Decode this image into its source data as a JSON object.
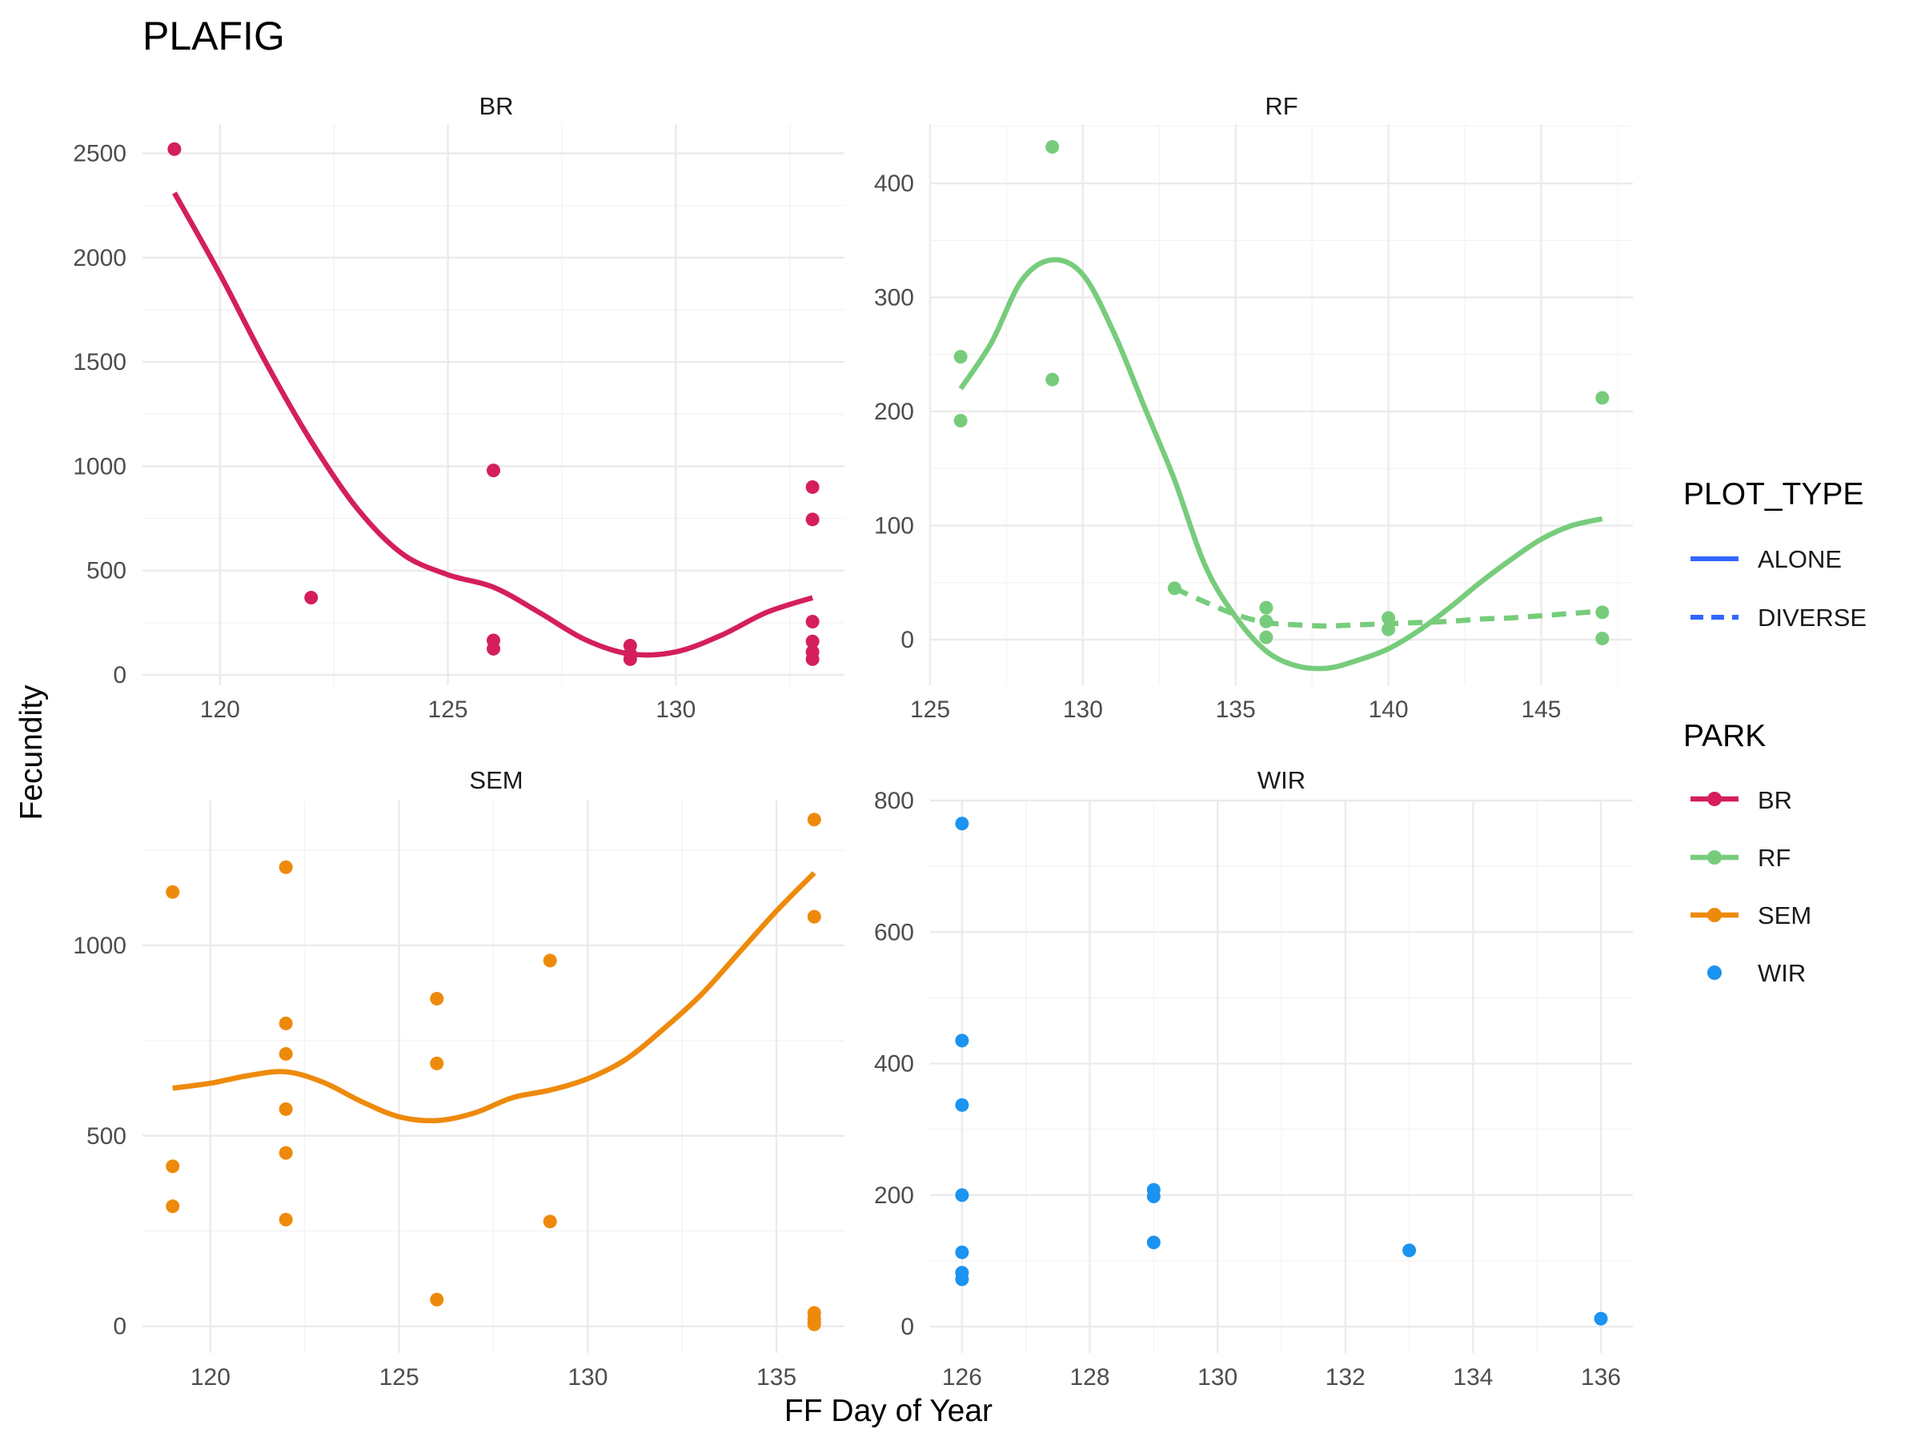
{
  "title": "PLAFIG",
  "xlabel": "FF Day of Year",
  "ylabel": "Fecundity",
  "legend": {
    "plot_type_title": "PLOT_TYPE",
    "plot_type_items": [
      {
        "label": "ALONE",
        "linetype": "solid"
      },
      {
        "label": "DIVERSE",
        "linetype": "dashed"
      }
    ],
    "park_title": "PARK",
    "park_items": [
      {
        "label": "BR",
        "color": "#d41f5b",
        "line": true
      },
      {
        "label": "RF",
        "color": "#77cc7c",
        "line": true
      },
      {
        "label": "SEM",
        "color": "#ee8a0b",
        "line": true
      },
      {
        "label": "WIR",
        "color": "#1b93f0",
        "line": false
      }
    ],
    "linetype_key_color": "#3366ff"
  },
  "chart_data": [
    {
      "type": "scatter",
      "facet": "BR",
      "color": "#d41f5b",
      "xlim": [
        118.3,
        133.7
      ],
      "ylim": [
        -50,
        2640
      ],
      "x_ticks": [
        120,
        125,
        130
      ],
      "y_ticks": [
        0,
        500,
        1000,
        1500,
        2000,
        2500
      ],
      "x_tick_labels": [
        "120",
        "125",
        "130"
      ],
      "y_tick_labels": [
        "0",
        "500",
        "1000",
        "1500",
        "2000",
        "2500"
      ],
      "points": [
        [
          119,
          2520
        ],
        [
          122,
          370
        ],
        [
          126,
          980
        ],
        [
          126,
          165
        ],
        [
          126,
          125
        ],
        [
          129,
          140
        ],
        [
          129,
          100
        ],
        [
          129,
          75
        ],
        [
          133,
          900
        ],
        [
          133,
          745
        ],
        [
          133,
          255
        ],
        [
          133,
          160
        ],
        [
          133,
          110
        ],
        [
          133,
          75
        ]
      ],
      "lines": [
        {
          "plot_type": "ALONE",
          "points": [
            [
              119,
              2310
            ],
            [
              120,
              1920
            ],
            [
              121,
              1500
            ],
            [
              122,
              1120
            ],
            [
              123,
              800
            ],
            [
              124,
              580
            ],
            [
              125,
              480
            ],
            [
              126,
              420
            ],
            [
              127,
              300
            ],
            [
              128,
              170
            ],
            [
              129,
              100
            ],
            [
              130,
              110
            ],
            [
              131,
              190
            ],
            [
              132,
              300
            ],
            [
              133,
              370
            ]
          ]
        }
      ]
    },
    {
      "type": "scatter",
      "facet": "RF",
      "color": "#77cc7c",
      "xlim": [
        125,
        148
      ],
      "ylim": [
        -40,
        452
      ],
      "x_ticks": [
        125,
        130,
        135,
        140,
        145
      ],
      "y_ticks": [
        0,
        100,
        200,
        300,
        400
      ],
      "x_tick_labels": [
        "125",
        "130",
        "135",
        "140",
        "145"
      ],
      "y_tick_labels": [
        "0",
        "100",
        "200",
        "300",
        "400"
      ],
      "points": [
        [
          126,
          248
        ],
        [
          126,
          192
        ],
        [
          129,
          432
        ],
        [
          129,
          228
        ],
        [
          133,
          45
        ],
        [
          136,
          28
        ],
        [
          136,
          16
        ],
        [
          136,
          2
        ],
        [
          140,
          19
        ],
        [
          140,
          9
        ],
        [
          147,
          212
        ],
        [
          147,
          24
        ],
        [
          147,
          1
        ]
      ],
      "lines": [
        {
          "plot_type": "ALONE",
          "points": [
            [
              126,
              220
            ],
            [
              127,
              260
            ],
            [
              128,
              315
            ],
            [
              129,
              333
            ],
            [
              130,
              320
            ],
            [
              131,
              270
            ],
            [
              132,
              205
            ],
            [
              133,
              140
            ],
            [
              134,
              65
            ],
            [
              135,
              20
            ],
            [
              136,
              -10
            ],
            [
              137,
              -23
            ],
            [
              138,
              -25
            ],
            [
              139,
              -18
            ],
            [
              140,
              -8
            ],
            [
              141,
              8
            ],
            [
              142,
              28
            ],
            [
              143,
              50
            ],
            [
              144,
              70
            ],
            [
              145,
              88
            ],
            [
              146,
              100
            ],
            [
              147,
              106
            ]
          ]
        },
        {
          "plot_type": "DIVERSE",
          "points": [
            [
              133,
              45
            ],
            [
              134,
              33
            ],
            [
              135,
              22
            ],
            [
              136,
              15
            ],
            [
              137,
              13
            ],
            [
              138,
              12
            ],
            [
              139,
              13
            ],
            [
              140,
              14
            ],
            [
              141,
              15
            ],
            [
              142,
              16
            ],
            [
              143,
              18
            ],
            [
              144,
              19
            ],
            [
              145,
              21
            ],
            [
              146,
              23
            ],
            [
              147,
              25
            ]
          ]
        }
      ]
    },
    {
      "type": "scatter",
      "facet": "SEM",
      "color": "#ee8a0b",
      "xlim": [
        118.2,
        136.8
      ],
      "ylim": [
        -70,
        1380
      ],
      "x_ticks": [
        120,
        125,
        130,
        135
      ],
      "y_ticks": [
        0,
        500,
        1000
      ],
      "x_tick_labels": [
        "120",
        "125",
        "130",
        "135"
      ],
      "y_tick_labels": [
        "0",
        "500",
        "1000"
      ],
      "points": [
        [
          119,
          1140
        ],
        [
          119,
          420
        ],
        [
          119,
          315
        ],
        [
          122,
          1205
        ],
        [
          122,
          795
        ],
        [
          122,
          715
        ],
        [
          122,
          570
        ],
        [
          122,
          455
        ],
        [
          122,
          280
        ],
        [
          126,
          860
        ],
        [
          126,
          690
        ],
        [
          126,
          70
        ],
        [
          129,
          960
        ],
        [
          129,
          275
        ],
        [
          136,
          1330
        ],
        [
          136,
          1075
        ],
        [
          136,
          35
        ],
        [
          136,
          20
        ],
        [
          136,
          10
        ],
        [
          136,
          5
        ]
      ],
      "lines": [
        {
          "plot_type": "ALONE",
          "points": [
            [
              119,
              625
            ],
            [
              120,
              638
            ],
            [
              121,
              658
            ],
            [
              122,
              668
            ],
            [
              123,
              640
            ],
            [
              124,
              590
            ],
            [
              125,
              550
            ],
            [
              126,
              540
            ],
            [
              127,
              560
            ],
            [
              128,
              600
            ],
            [
              129,
              620
            ],
            [
              130,
              650
            ],
            [
              131,
              700
            ],
            [
              132,
              780
            ],
            [
              133,
              870
            ],
            [
              134,
              980
            ],
            [
              135,
              1090
            ],
            [
              136,
              1190
            ]
          ]
        }
      ]
    },
    {
      "type": "scatter",
      "facet": "WIR",
      "color": "#1b93f0",
      "xlim": [
        125.5,
        136.5
      ],
      "ylim": [
        -40,
        800
      ],
      "x_ticks": [
        126,
        128,
        130,
        132,
        134,
        136
      ],
      "y_ticks": [
        0,
        200,
        400,
        600,
        800
      ],
      "x_tick_labels": [
        "126",
        "128",
        "130",
        "132",
        "134",
        "136"
      ],
      "y_tick_labels": [
        "0",
        "200",
        "400",
        "600",
        "800"
      ],
      "points": [
        [
          126,
          765
        ],
        [
          126,
          435
        ],
        [
          126,
          337
        ],
        [
          126,
          200
        ],
        [
          126,
          113
        ],
        [
          126,
          82
        ],
        [
          126,
          72
        ],
        [
          129,
          208
        ],
        [
          129,
          198
        ],
        [
          129,
          128
        ],
        [
          133,
          116
        ],
        [
          136,
          12
        ]
      ],
      "lines": []
    }
  ]
}
